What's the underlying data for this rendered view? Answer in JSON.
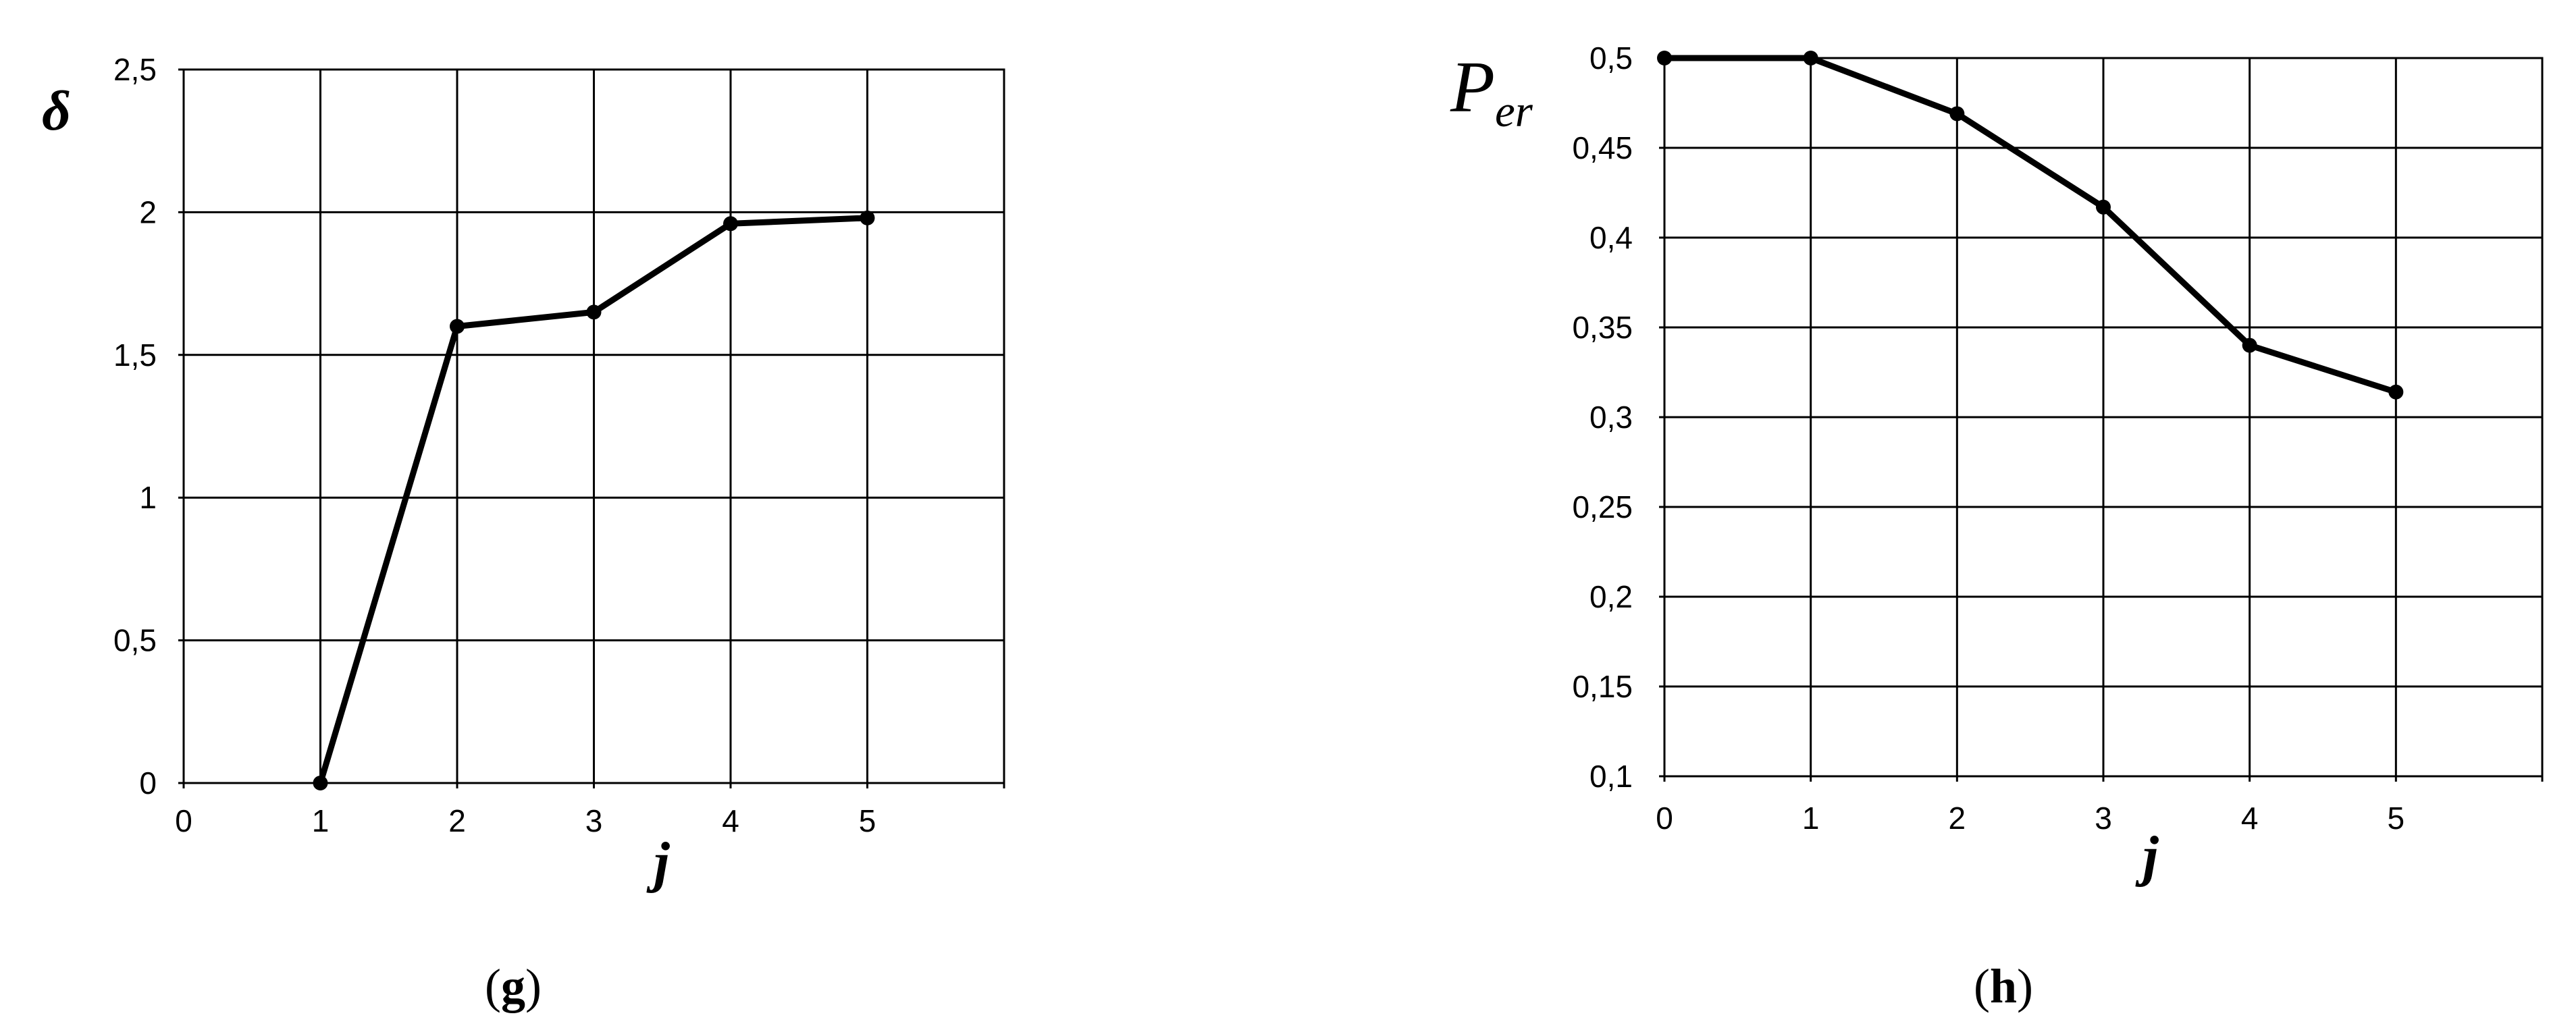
{
  "chart_data": [
    {
      "type": "line",
      "panel_label": "g",
      "ylabel": "δ",
      "xlabel": "j",
      "x_ticks": [
        "0",
        "1",
        "2",
        "3",
        "4",
        "5"
      ],
      "y_ticks": [
        "0",
        "0,5",
        "1",
        "1,5",
        "2",
        "2,5"
      ],
      "xlim": [
        0,
        6
      ],
      "ylim": [
        0,
        2.5
      ],
      "grid": true,
      "series": [
        {
          "x": [
            1,
            2,
            3,
            4,
            5
          ],
          "y": [
            0,
            1.6,
            1.65,
            1.96,
            1.98
          ]
        }
      ]
    },
    {
      "type": "line",
      "panel_label": "h",
      "ylabel": "P",
      "ylabel_sub": "er",
      "xlabel": "j",
      "x_ticks": [
        "0",
        "1",
        "2",
        "3",
        "4",
        "5"
      ],
      "y_ticks": [
        "0,1",
        "0,15",
        "0,2",
        "0,25",
        "0,3",
        "0,35",
        "0,4",
        "0,45",
        "0,5"
      ],
      "xlim": [
        0,
        6
      ],
      "ylim": [
        0.1,
        0.5
      ],
      "grid": true,
      "series": [
        {
          "x": [
            0,
            1,
            2,
            3,
            4,
            5
          ],
          "y": [
            0.5,
            0.5,
            0.469,
            0.417,
            0.34,
            0.314
          ]
        }
      ]
    }
  ]
}
